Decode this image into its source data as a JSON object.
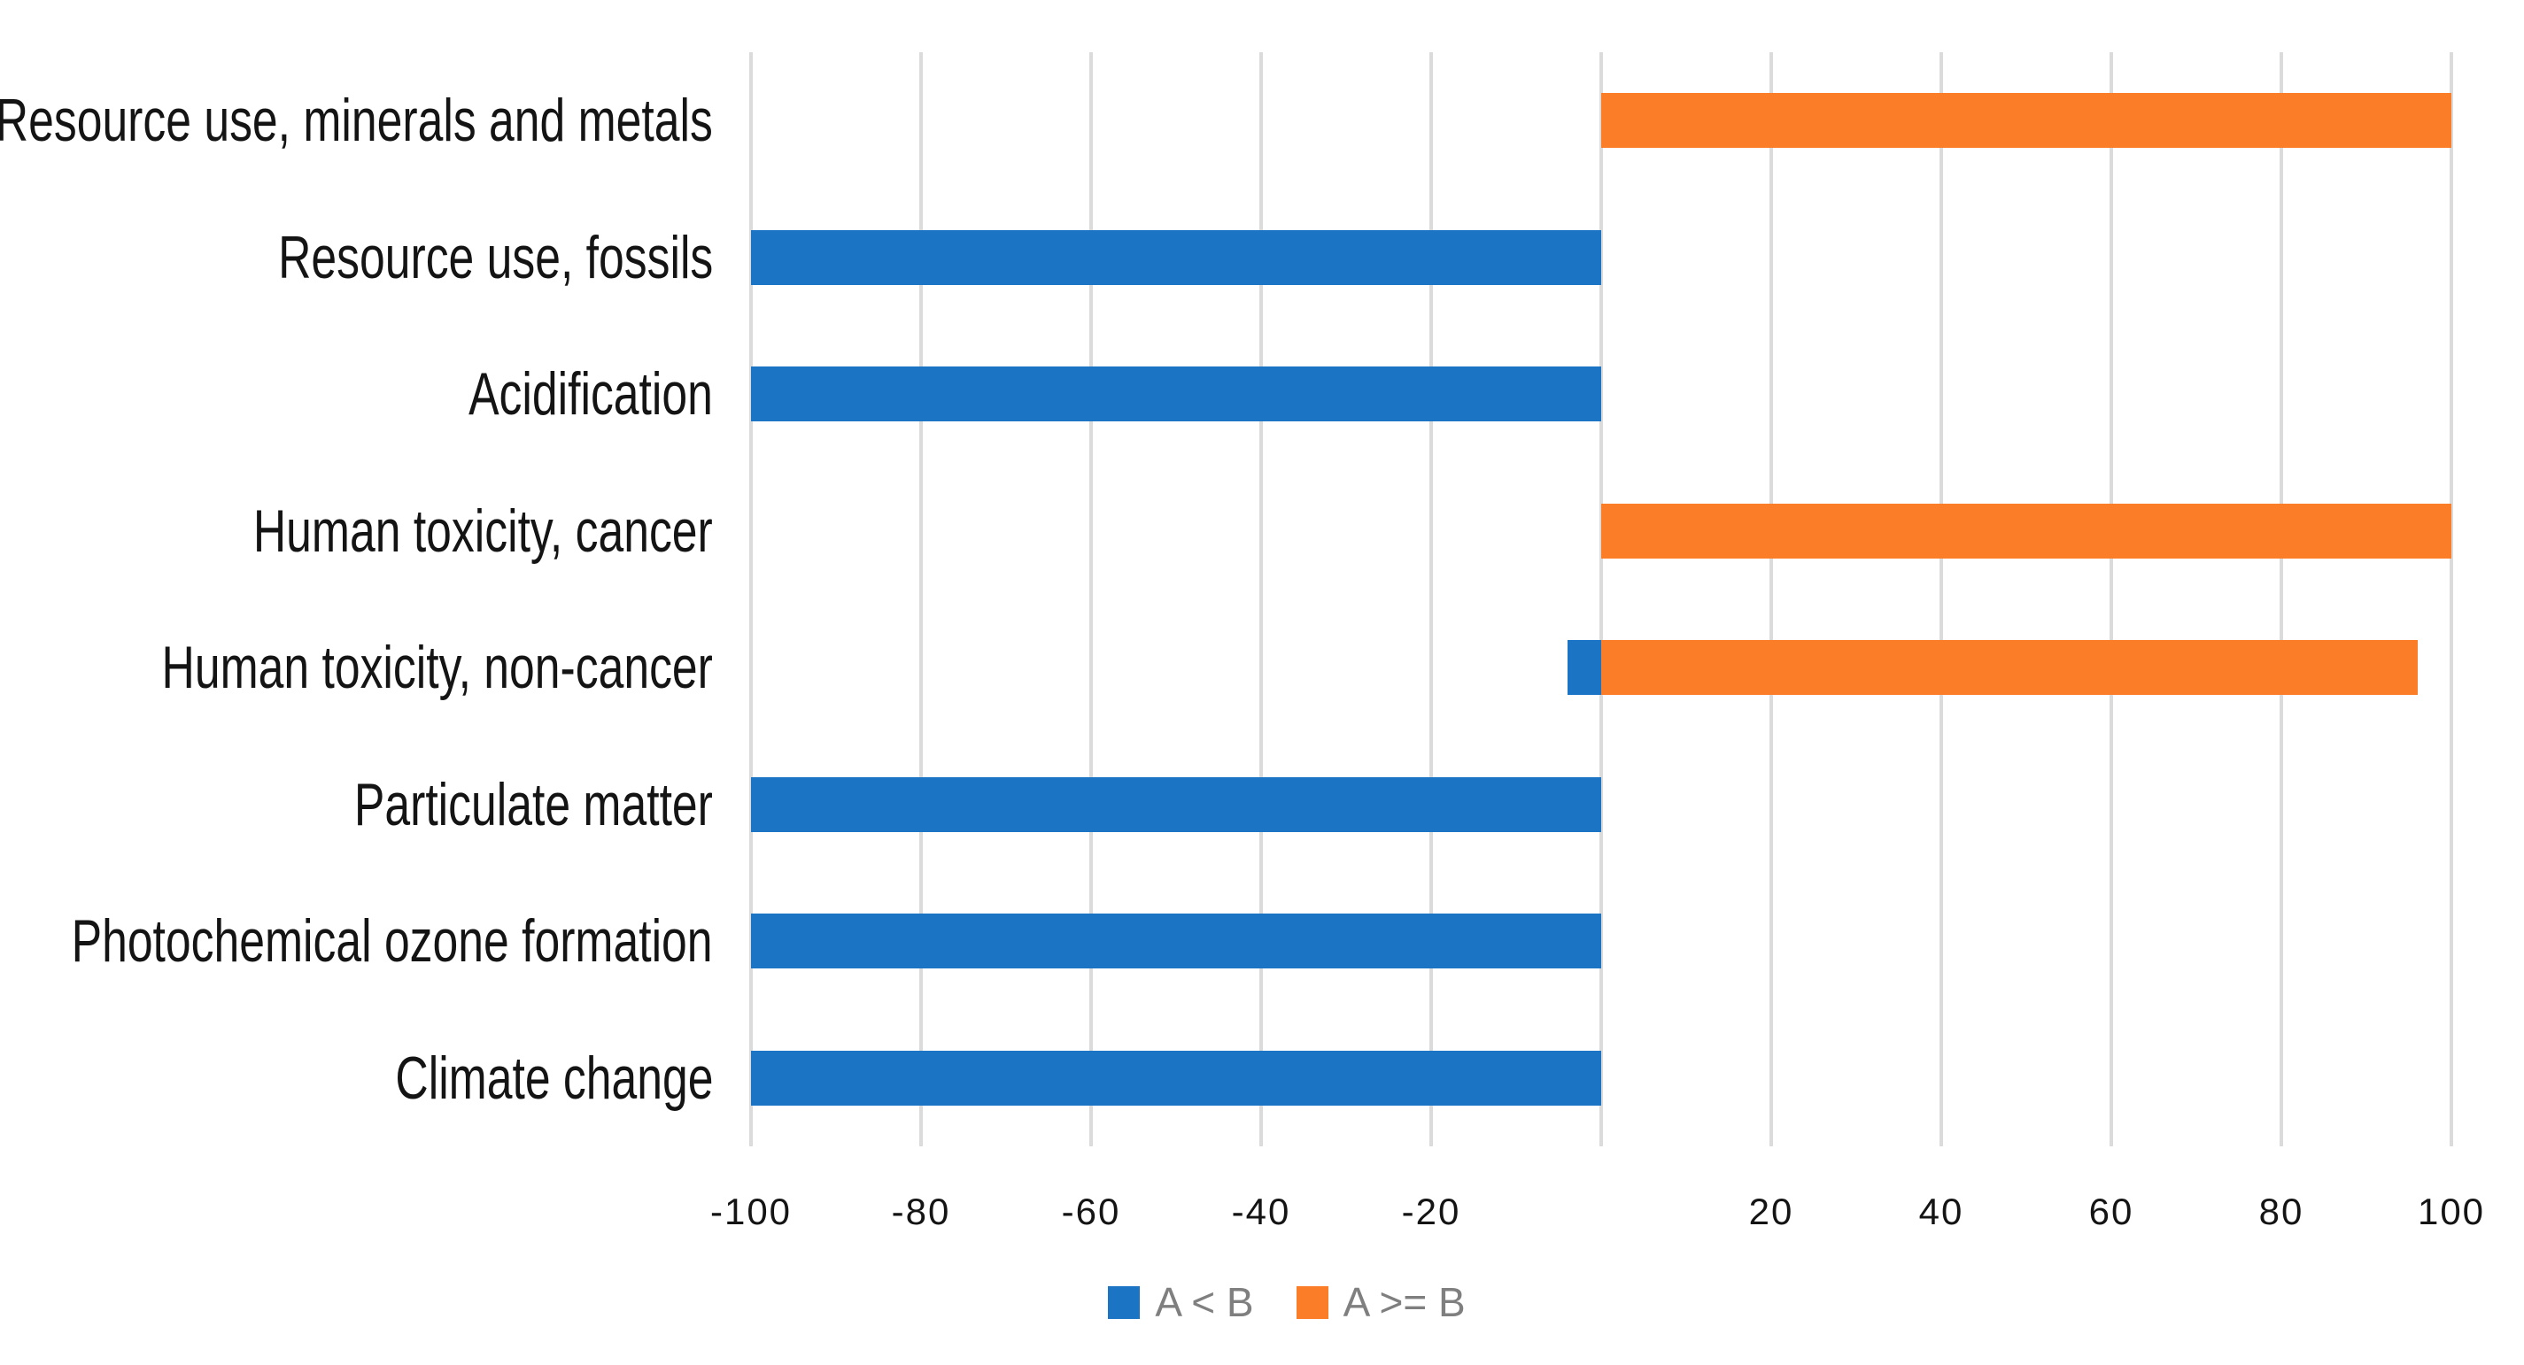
{
  "colors": {
    "blue_series": "#1B74C4",
    "orange_series": "#FC7D27",
    "gridline": "#DBDBDB",
    "axis_text": "#141414",
    "legend_text": "#7F7F7F",
    "background": "#FFFFFF"
  },
  "chart_data": {
    "type": "bar",
    "orientation": "horizontal",
    "title": "",
    "xlabel": "",
    "ylabel": "",
    "xlim": [
      -100,
      100
    ],
    "grid": "vertical",
    "gridline_values": [
      -100,
      -80,
      -60,
      -40,
      -20,
      0,
      20,
      40,
      60,
      80,
      100
    ],
    "x_tick_labels": [
      "-100",
      "-80",
      "-60",
      "-40",
      "-20",
      "20",
      "40",
      "60",
      "80",
      "100"
    ],
    "legend_position": "bottom-center",
    "categories": [
      "Resource use, minerals and metals",
      "Resource use, fossils",
      "Acidification",
      "Human toxicity, cancer",
      "Human toxicity, non-cancer",
      "Particulate matter",
      "Photochemical ozone formation",
      "Climate change"
    ],
    "series": [
      {
        "name": "A < B",
        "color": "#1B74C4",
        "values": [
          0,
          -100,
          -100,
          0,
          -4,
          -100,
          -100,
          -100
        ]
      },
      {
        "name": "A >= B",
        "color": "#FC7D27",
        "values": [
          100,
          0,
          0,
          100,
          96,
          0,
          0,
          0
        ]
      }
    ]
  }
}
